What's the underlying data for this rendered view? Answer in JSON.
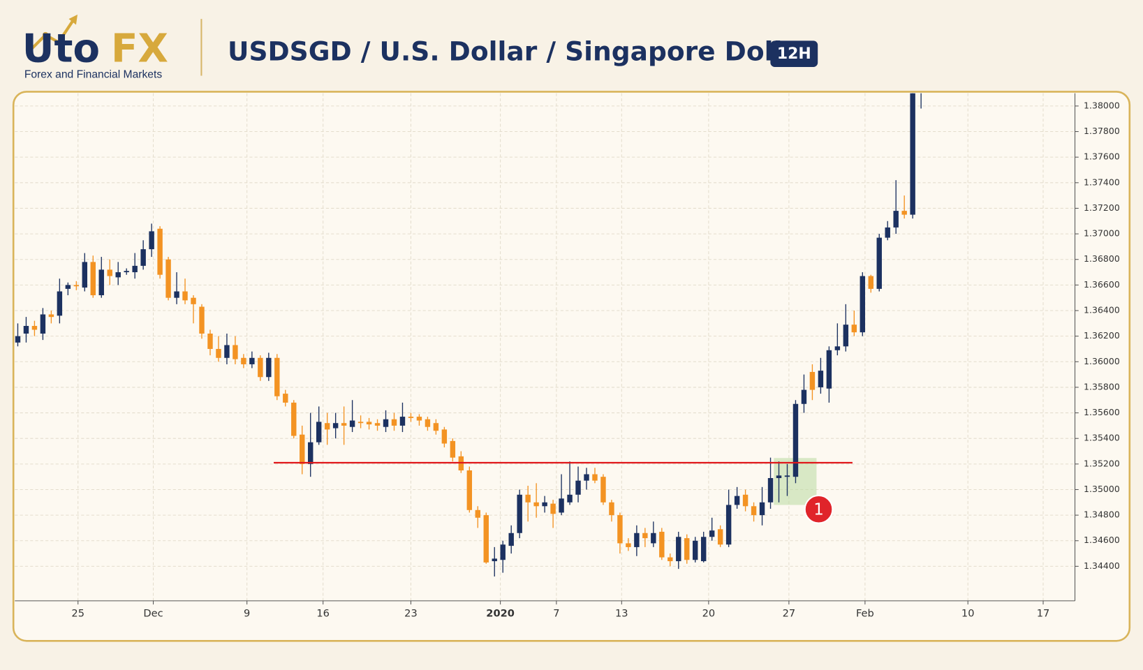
{
  "header": {
    "logo_primary": "Uto",
    "logo_accent": "FX",
    "tagline": "Forex and Financial Markets",
    "title": "USDSGD / U.S. Dollar / Singapore Dollar",
    "interval": "12H"
  },
  "chart_data": {
    "type": "candlestick",
    "up_color": "#1c3160",
    "down_color": "#f39323",
    "open": [
      1.3615,
      1.3622,
      1.3628,
      1.3622,
      1.3637,
      1.3636,
      1.3657,
      1.366,
      1.3658,
      1.3678,
      1.3652,
      1.3672,
      1.3666,
      1.367,
      1.367,
      1.3675,
      1.3688,
      1.3704,
      1.368,
      1.365,
      1.3655,
      1.365,
      1.3643,
      1.3622,
      1.361,
      1.3603,
      1.3613,
      1.3603,
      1.3598,
      1.3603,
      1.3588,
      1.3603,
      1.3575,
      1.3568,
      1.3543,
      1.352,
      1.3537,
      1.3552,
      1.3548,
      1.3552,
      1.3549,
      1.3553,
      1.3553,
      1.3552,
      1.3549,
      1.3555,
      1.355,
      1.3557,
      1.3557,
      1.3555,
      1.3552,
      1.3547,
      1.3538,
      1.3526,
      1.3515,
      1.3484,
      1.348,
      1.3444,
      1.3445,
      1.3456,
      1.3466,
      1.3496,
      1.349,
      1.3487,
      1.3489,
      1.3482,
      1.349,
      1.3496,
      1.3507,
      1.3512,
      1.351,
      1.349,
      1.348,
      1.3458,
      1.3455,
      1.3466,
      1.3458,
      1.3467,
      1.3447,
      1.3444,
      1.3462,
      1.3445,
      1.3444,
      1.3463,
      1.3469,
      1.3457,
      1.3488,
      1.3496,
      1.3487,
      1.348,
      1.349,
      1.3509,
      1.351,
      1.351,
      1.3567,
      1.3592,
      1.358,
      1.3579,
      1.3609,
      1.3612,
      1.3629,
      1.3623,
      1.3667,
      1.3657,
      1.3697,
      1.3705,
      1.3718,
      1.3715,
      1.381
    ],
    "high": [
      1.363,
      1.3635,
      1.3632,
      1.3642,
      1.364,
      1.3665,
      1.3662,
      1.3663,
      1.3685,
      1.3683,
      1.3682,
      1.368,
      1.3678,
      1.3673,
      1.3685,
      1.3695,
      1.3708,
      1.3706,
      1.3682,
      1.367,
      1.3665,
      1.3652,
      1.3645,
      1.3625,
      1.362,
      1.3622,
      1.362,
      1.3606,
      1.3608,
      1.3605,
      1.3607,
      1.3606,
      1.3578,
      1.357,
      1.355,
      1.356,
      1.3565,
      1.356,
      1.356,
      1.3565,
      1.357,
      1.3558,
      1.3556,
      1.3555,
      1.3562,
      1.356,
      1.3568,
      1.356,
      1.3559,
      1.3557,
      1.3555,
      1.3549,
      1.354,
      1.353,
      1.3518,
      1.3487,
      1.3482,
      1.3455,
      1.346,
      1.3472,
      1.35,
      1.3503,
      1.3505,
      1.3495,
      1.3492,
      1.3512,
      1.3522,
      1.3518,
      1.3517,
      1.3517,
      1.3512,
      1.3492,
      1.3482,
      1.3462,
      1.3472,
      1.347,
      1.3475,
      1.347,
      1.345,
      1.3467,
      1.3465,
      1.3463,
      1.3467,
      1.3478,
      1.3472,
      1.35,
      1.3502,
      1.35,
      1.349,
      1.3502,
      1.3525,
      1.3522,
      1.352,
      1.357,
      1.359,
      1.3598,
      1.3603,
      1.3612,
      1.363,
      1.3645,
      1.364,
      1.367,
      1.3668,
      1.37,
      1.371,
      1.3742,
      1.373,
      1.3815,
      1.3818
    ],
    "low": [
      1.3612,
      1.3615,
      1.362,
      1.3617,
      1.363,
      1.363,
      1.3652,
      1.3656,
      1.3655,
      1.365,
      1.365,
      1.366,
      1.366,
      1.3668,
      1.3665,
      1.3672,
      1.3682,
      1.3665,
      1.3648,
      1.3645,
      1.3645,
      1.363,
      1.3618,
      1.3605,
      1.36,
      1.3598,
      1.3598,
      1.3595,
      1.3595,
      1.3585,
      1.3585,
      1.357,
      1.3565,
      1.354,
      1.3512,
      1.351,
      1.3535,
      1.3535,
      1.354,
      1.3535,
      1.3545,
      1.3548,
      1.3547,
      1.3546,
      1.3545,
      1.3546,
      1.3545,
      1.3553,
      1.355,
      1.3546,
      1.3543,
      1.3533,
      1.3522,
      1.3513,
      1.3482,
      1.347,
      1.3442,
      1.3432,
      1.3435,
      1.345,
      1.3462,
      1.3475,
      1.3478,
      1.3482,
      1.347,
      1.348,
      1.3488,
      1.349,
      1.35,
      1.3505,
      1.3488,
      1.3475,
      1.345,
      1.3452,
      1.3448,
      1.3455,
      1.3455,
      1.3445,
      1.344,
      1.3438,
      1.3442,
      1.3443,
      1.3443,
      1.346,
      1.3455,
      1.3455,
      1.3485,
      1.3483,
      1.3475,
      1.3472,
      1.3485,
      1.349,
      1.3495,
      1.3505,
      1.356,
      1.357,
      1.3575,
      1.3568,
      1.3605,
      1.3608,
      1.362,
      1.362,
      1.3654,
      1.3655,
      1.3695,
      1.37,
      1.3712,
      1.3712,
      1.3798
    ],
    "close": [
      1.362,
      1.3628,
      1.3625,
      1.3637,
      1.3635,
      1.3655,
      1.366,
      1.3659,
      1.3678,
      1.3652,
      1.3672,
      1.3667,
      1.367,
      1.3671,
      1.3675,
      1.3688,
      1.3702,
      1.3668,
      1.365,
      1.3655,
      1.3648,
      1.3645,
      1.3622,
      1.361,
      1.3603,
      1.3613,
      1.3602,
      1.3598,
      1.3603,
      1.3588,
      1.3603,
      1.3573,
      1.3568,
      1.3542,
      1.352,
      1.3537,
      1.3553,
      1.3547,
      1.3552,
      1.355,
      1.3554,
      1.3552,
      1.3551,
      1.355,
      1.3555,
      1.355,
      1.3557,
      1.3556,
      1.3554,
      1.3549,
      1.3546,
      1.3536,
      1.3525,
      1.3515,
      1.3484,
      1.3478,
      1.3443,
      1.3446,
      1.3457,
      1.3466,
      1.3496,
      1.349,
      1.3487,
      1.349,
      1.3481,
      1.3493,
      1.3496,
      1.3507,
      1.3512,
      1.3507,
      1.349,
      1.348,
      1.3458,
      1.3455,
      1.3466,
      1.3462,
      1.3466,
      1.3447,
      1.3444,
      1.3463,
      1.3445,
      1.346,
      1.3463,
      1.3468,
      1.3457,
      1.3488,
      1.3495,
      1.3487,
      1.348,
      1.349,
      1.3509,
      1.3511,
      1.3511,
      1.3567,
      1.3578,
      1.3578,
      1.3593,
      1.3609,
      1.3612,
      1.3629,
      1.3623,
      1.3667,
      1.3657,
      1.3697,
      1.3705,
      1.3718,
      1.3715,
      1.381,
      1.3812
    ],
    "xlim": [
      -0.35,
      126.4
    ],
    "xticks": [
      {
        "value": 7.2,
        "label": "25"
      },
      {
        "value": 16.2,
        "label": "Dec"
      },
      {
        "value": 27.4,
        "label": "9"
      },
      {
        "value": 36.5,
        "label": "16"
      },
      {
        "value": 47.0,
        "label": "23"
      },
      {
        "value": 57.7,
        "label": "2020"
      },
      {
        "value": 64.4,
        "label": "7"
      },
      {
        "value": 72.2,
        "label": "13"
      },
      {
        "value": 82.6,
        "label": "20"
      },
      {
        "value": 92.2,
        "label": "27"
      },
      {
        "value": 101.3,
        "label": "Feb"
      },
      {
        "value": 113.6,
        "label": "10"
      },
      {
        "value": 122.6,
        "label": "17"
      }
    ],
    "ylim": [
      1.3413,
      1.381
    ],
    "yticks": [
      {
        "value": 1.344,
        "label": "1.34400"
      },
      {
        "value": 1.346,
        "label": "1.34600"
      },
      {
        "value": 1.348,
        "label": "1.34800"
      },
      {
        "value": 1.35,
        "label": "1.35000"
      },
      {
        "value": 1.352,
        "label": "1.35200"
      },
      {
        "value": 1.354,
        "label": "1.35400"
      },
      {
        "value": 1.356,
        "label": "1.35600"
      },
      {
        "value": 1.358,
        "label": "1.35800"
      },
      {
        "value": 1.36,
        "label": "1.36000"
      },
      {
        "value": 1.362,
        "label": "1.36200"
      },
      {
        "value": 1.364,
        "label": "1.36400"
      },
      {
        "value": 1.366,
        "label": "1.36600"
      },
      {
        "value": 1.368,
        "label": "1.36800"
      },
      {
        "value": 1.37,
        "label": "1.37000"
      },
      {
        "value": 1.372,
        "label": "1.37200"
      },
      {
        "value": 1.374,
        "label": "1.37400"
      },
      {
        "value": 1.376,
        "label": "1.37600"
      },
      {
        "value": 1.378,
        "label": "1.37800"
      },
      {
        "value": 1.38,
        "label": "1.38000"
      }
    ],
    "grid": true,
    "level": {
      "value": 1.3521,
      "x": [
        30.6,
        99.8
      ],
      "color": "#e0181b"
    },
    "highlight": {
      "x": [
        90.4,
        95.5
      ],
      "y": [
        1.3488,
        1.35247
      ],
      "color": "#b9dba0"
    },
    "marker": {
      "label": "1",
      "color": "#e0242a"
    }
  }
}
